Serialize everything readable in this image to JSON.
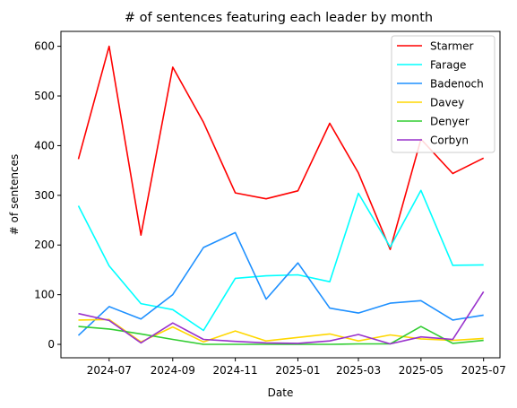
{
  "chart_data": {
    "type": "line",
    "title": "# of sentences featuring each leader by month",
    "xlabel": "Date",
    "ylabel": "# of sentences",
    "x": [
      "2024-06-01",
      "2024-07-01",
      "2024-08-01",
      "2024-09-01",
      "2024-10-01",
      "2024-11-01",
      "2024-12-01",
      "2025-01-01",
      "2025-02-01",
      "2025-03-01",
      "2025-04-01",
      "2025-05-01",
      "2025-06-01",
      "2025-07-01"
    ],
    "xticks": [
      "2024-07",
      "2024-09",
      "2024-11",
      "2025-01",
      "2025-03",
      "2025-05",
      "2025-07"
    ],
    "yticks": [
      0,
      100,
      200,
      300,
      400,
      500,
      600
    ],
    "ylim": [
      -27,
      630
    ],
    "grid": false,
    "legend_position": "top-right",
    "series": [
      {
        "name": "Starmer",
        "color": "#ff0000",
        "values": [
          373,
          600,
          220,
          558,
          447,
          305,
          293,
          309,
          445,
          345,
          191,
          413,
          344,
          375
        ]
      },
      {
        "name": "Farage",
        "color": "#00ffff",
        "values": [
          279,
          158,
          82,
          70,
          28,
          133,
          138,
          140,
          126,
          304,
          196,
          310,
          159,
          160
        ]
      },
      {
        "name": "Badenoch",
        "color": "#1e90ff",
        "values": [
          18,
          76,
          51,
          100,
          195,
          225,
          91,
          164,
          73,
          63,
          83,
          88,
          49,
          59
        ]
      },
      {
        "name": "Davey",
        "color": "#ffd700",
        "values": [
          49,
          50,
          5,
          35,
          5,
          27,
          7,
          14,
          21,
          7,
          19,
          11,
          8,
          12
        ]
      },
      {
        "name": "Denyer",
        "color": "#32cd32",
        "values": [
          36,
          31,
          21,
          10,
          0,
          0,
          0,
          0,
          0,
          1,
          1,
          36,
          2,
          8
        ]
      },
      {
        "name": "Corbyn",
        "color": "#9932cc",
        "values": [
          62,
          48,
          3,
          43,
          10,
          6,
          3,
          2,
          7,
          20,
          1,
          15,
          10,
          106
        ]
      }
    ]
  }
}
